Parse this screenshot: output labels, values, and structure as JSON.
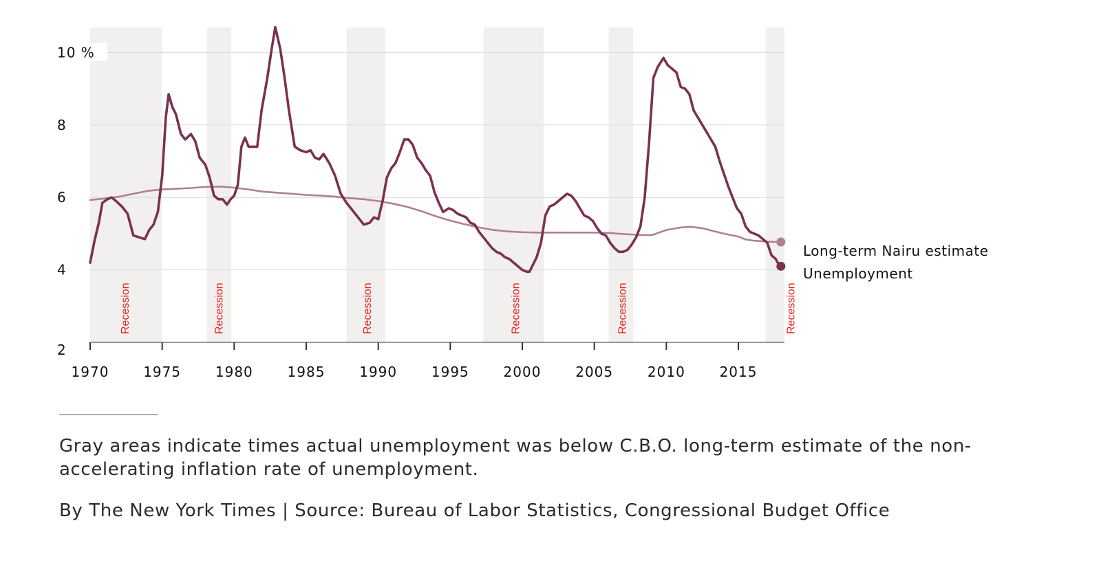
{
  "chart_data": {
    "type": "line",
    "title": "",
    "xlabel": "",
    "ylabel": "",
    "xlim": [
      1970,
      2018.2
    ],
    "ylim": [
      2,
      10.75
    ],
    "x_ticks": [
      1970,
      1975,
      1980,
      1985,
      1990,
      1995,
      2000,
      2005,
      2010,
      2015
    ],
    "y_ticks": [
      {
        "value": 2,
        "label": "2"
      },
      {
        "value": 4,
        "label": "4"
      },
      {
        "value": 6,
        "label": "6"
      },
      {
        "value": 8,
        "label": "8"
      },
      {
        "value": 10,
        "label": "10 %"
      }
    ],
    "grid": true,
    "shaded_periods": [
      {
        "start": 1970.0,
        "end": 1975.0,
        "label": "Recession",
        "label_x": 1972.4
      },
      {
        "start": 1978.1,
        "end": 1979.8,
        "label": "Recession",
        "label_x": 1978.9
      },
      {
        "start": 1987.8,
        "end": 1990.5,
        "label": "Recession",
        "label_x": 1989.2
      },
      {
        "start": 1997.3,
        "end": 2001.5,
        "label": "Recession",
        "label_x": 1999.5
      },
      {
        "start": 2006.0,
        "end": 2007.7,
        "label": "Recession",
        "label_x": 2006.9
      },
      {
        "start": 2016.9,
        "end": 2018.2,
        "label": "Recession",
        "label_x": 2018.6
      }
    ],
    "series": [
      {
        "name": "Long-term Nairu estimate",
        "color": "#b07f92",
        "x": [
          1970,
          1971,
          1972,
          1973,
          1974,
          1975,
          1976,
          1977,
          1978,
          1979,
          1980,
          1981,
          1982,
          1983,
          1984,
          1985,
          1986,
          1987,
          1988,
          1989,
          1990,
          1991,
          1992,
          1993,
          1994,
          1995,
          1996,
          1997,
          1998,
          1999,
          2000,
          2001,
          2002,
          2003,
          2004,
          2005,
          2006,
          2007,
          2008,
          2008.5,
          2009,
          2010,
          2011,
          2011.7,
          2012.5,
          2013,
          2014,
          2015,
          2015.5,
          2016,
          2017,
          2018
        ],
        "values": [
          5.93,
          5.97,
          6.02,
          6.1,
          6.18,
          6.22,
          6.24,
          6.26,
          6.29,
          6.3,
          6.27,
          6.22,
          6.16,
          6.13,
          6.1,
          6.07,
          6.05,
          6.02,
          5.98,
          5.95,
          5.9,
          5.83,
          5.74,
          5.62,
          5.48,
          5.36,
          5.26,
          5.17,
          5.1,
          5.06,
          5.04,
          5.03,
          5.03,
          5.03,
          5.03,
          5.03,
          5.02,
          4.99,
          4.97,
          4.96,
          4.96,
          5.1,
          5.17,
          5.19,
          5.15,
          5.1,
          5.0,
          4.92,
          4.84,
          4.81,
          4.78,
          4.77
        ]
      },
      {
        "name": "Unemployment",
        "color": "#7b3150",
        "x": [
          1970.0,
          1970.3,
          1970.6,
          1970.85,
          1971.2,
          1971.5,
          1971.8,
          1972.2,
          1972.6,
          1973.0,
          1973.4,
          1973.8,
          1974.1,
          1974.4,
          1974.7,
          1975.0,
          1975.25,
          1975.45,
          1975.7,
          1975.95,
          1976.3,
          1976.6,
          1977.0,
          1977.3,
          1977.6,
          1978.0,
          1978.3,
          1978.6,
          1978.9,
          1979.2,
          1979.5,
          1979.75,
          1980.0,
          1980.25,
          1980.5,
          1980.75,
          1981.0,
          1981.3,
          1981.6,
          1981.9,
          1982.3,
          1982.6,
          1982.85,
          1983.2,
          1983.5,
          1983.8,
          1984.2,
          1984.6,
          1985.0,
          1985.3,
          1985.6,
          1985.9,
          1986.2,
          1986.6,
          1987.0,
          1987.4,
          1987.8,
          1988.2,
          1988.6,
          1989.0,
          1989.4,
          1989.7,
          1990.0,
          1990.3,
          1990.6,
          1990.9,
          1991.2,
          1991.5,
          1991.8,
          1992.1,
          1992.4,
          1992.7,
          1993.0,
          1993.3,
          1993.6,
          1993.9,
          1994.2,
          1994.5,
          1994.9,
          1995.2,
          1995.5,
          1995.8,
          1996.1,
          1996.4,
          1996.7,
          1997.0,
          1997.3,
          1997.6,
          1997.9,
          1998.2,
          1998.5,
          1998.8,
          1999.1,
          1999.4,
          1999.7,
          2000.0,
          2000.3,
          2000.5,
          2000.75,
          2001.0,
          2001.3,
          2001.6,
          2001.9,
          2002.2,
          2002.5,
          2002.8,
          2003.1,
          2003.4,
          2003.7,
          2004.0,
          2004.3,
          2004.6,
          2004.9,
          2005.2,
          2005.5,
          2005.8,
          2006.1,
          2006.4,
          2006.7,
          2007.0,
          2007.3,
          2007.6,
          2007.9,
          2008.2,
          2008.5,
          2008.8,
          2009.1,
          2009.4,
          2009.8,
          2010.1,
          2010.4,
          2010.7,
          2011.0,
          2011.3,
          2011.6,
          2011.9,
          2012.2,
          2012.5,
          2012.8,
          2013.1,
          2013.4,
          2013.7,
          2014.0,
          2014.3,
          2014.6,
          2014.9,
          2015.2,
          2015.5,
          2015.8,
          2016.1,
          2016.4,
          2016.7,
          2017.0,
          2017.3,
          2017.6,
          2017.8,
          2018.0
        ],
        "values": [
          4.2,
          4.8,
          5.3,
          5.85,
          5.95,
          6.0,
          5.9,
          5.75,
          5.55,
          4.95,
          4.9,
          4.85,
          5.1,
          5.25,
          5.6,
          6.6,
          8.2,
          8.85,
          8.5,
          8.3,
          7.75,
          7.6,
          7.75,
          7.55,
          7.1,
          6.9,
          6.55,
          6.05,
          5.95,
          5.95,
          5.8,
          5.95,
          6.05,
          6.35,
          7.4,
          7.65,
          7.4,
          7.4,
          7.4,
          8.4,
          9.3,
          10.1,
          10.7,
          10.1,
          9.3,
          8.4,
          7.4,
          7.3,
          7.25,
          7.3,
          7.1,
          7.05,
          7.2,
          6.95,
          6.6,
          6.1,
          5.85,
          5.65,
          5.45,
          5.25,
          5.3,
          5.45,
          5.4,
          5.9,
          6.55,
          6.8,
          6.95,
          7.25,
          7.6,
          7.6,
          7.45,
          7.1,
          6.95,
          6.75,
          6.6,
          6.15,
          5.85,
          5.6,
          5.7,
          5.65,
          5.55,
          5.5,
          5.45,
          5.3,
          5.25,
          5.05,
          4.9,
          4.75,
          4.6,
          4.5,
          4.45,
          4.35,
          4.3,
          4.2,
          4.1,
          4.0,
          3.95,
          3.95,
          4.15,
          4.35,
          4.75,
          5.5,
          5.75,
          5.8,
          5.9,
          6.0,
          6.1,
          6.05,
          5.9,
          5.7,
          5.5,
          5.45,
          5.35,
          5.15,
          5.0,
          4.95,
          4.75,
          4.6,
          4.5,
          4.5,
          4.55,
          4.7,
          4.9,
          5.2,
          6.0,
          7.5,
          9.3,
          9.6,
          9.85,
          9.65,
          9.55,
          9.45,
          9.05,
          9.0,
          8.85,
          8.4,
          8.2,
          8.0,
          7.8,
          7.6,
          7.4,
          7.0,
          6.65,
          6.3,
          6.0,
          5.7,
          5.55,
          5.2,
          5.05,
          5.0,
          4.95,
          4.85,
          4.75,
          4.4,
          4.3,
          4.15,
          4.1
        ]
      }
    ]
  },
  "note": "Gray areas indicate times actual unemployment was below C.B.O. long-term estimate of the non-accelerating inflation rate of unemployment.",
  "credit": "By The New York Times | Source: Bureau of Labor Statistics, Congressional Budget Office",
  "colors": {
    "shade": "#f2f0ef",
    "grid": "#d9d9d9",
    "axis": "#333333",
    "recession_label": "#e8201a",
    "tick_text": "#111111"
  }
}
